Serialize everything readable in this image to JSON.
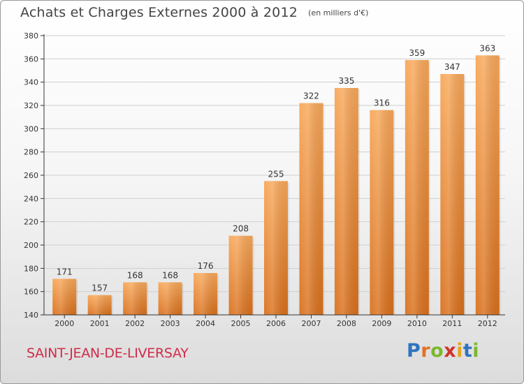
{
  "title": {
    "main": "Achats et Charges Externes 2000 à 2012",
    "unit": "(en milliers d'€)"
  },
  "commune": "SAINT-JEAN-DE-LIVERSAY",
  "logo": {
    "letters": [
      "P",
      "r",
      "o",
      "x",
      "i",
      "t",
      "i"
    ],
    "colors": [
      "#2f74c0",
      "#e2712b",
      "#7cb82f",
      "#d0342c",
      "#e8a51c",
      "#2f74c0",
      "#7cb82f"
    ]
  },
  "colors": {
    "bar_top": "#f8a85a",
    "bar_bottom": "#d9701c",
    "grid": "#cfcfcf",
    "axis": "#333333",
    "text": "#333333"
  },
  "chart_data": {
    "type": "bar",
    "categories": [
      "2000",
      "2001",
      "2002",
      "2003",
      "2004",
      "2005",
      "2006",
      "2007",
      "2008",
      "2009",
      "2010",
      "2011",
      "2012"
    ],
    "values": [
      171,
      157,
      168,
      168,
      176,
      208,
      255,
      322,
      335,
      316,
      359,
      347,
      363
    ],
    "data_labels": [
      "171",
      "157",
      "168",
      "168",
      "176",
      "208",
      "255",
      "322",
      "335",
      "316",
      "359",
      "347",
      "363"
    ],
    "yticks": [
      "140",
      "160",
      "180",
      "200",
      "220",
      "240",
      "260",
      "280",
      "300",
      "320",
      "340",
      "360",
      "380"
    ],
    "ylim": [
      140,
      380
    ],
    "title": "Achats et Charges Externes 2000 à 2012",
    "xlabel": "",
    "ylabel": "",
    "grid": true
  }
}
